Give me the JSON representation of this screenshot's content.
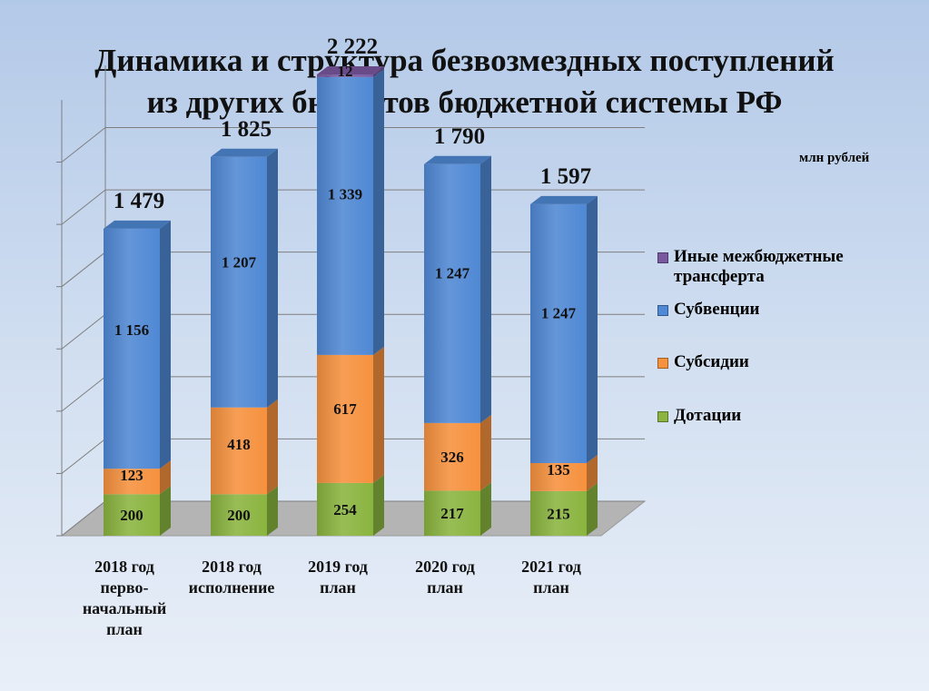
{
  "title_line1": "Динамика и структура безвозмездных поступлений",
  "title_line2": "из других бюджетов бюджетной системы РФ",
  "unit": "млн рублей",
  "colors": {
    "dotacii": "#8ab43f",
    "subsidii": "#f6913e",
    "subvencii": "#4f88d4",
    "inye": "#7a58a0"
  },
  "chart_data": {
    "type": "bar",
    "stacked": true,
    "three_d": true,
    "categories": [
      [
        "2018 год",
        "перво-",
        "начальный",
        "план"
      ],
      [
        "2018 год",
        "исполнение"
      ],
      [
        "2019 год",
        "план"
      ],
      [
        "2020 год",
        "план"
      ],
      [
        "2021 год",
        "план"
      ]
    ],
    "totals": [
      "1 479",
      "1 825",
      "2 222",
      "1 790",
      "1 597"
    ],
    "series": [
      {
        "key": "dotacii",
        "name": "Дотации",
        "values": [
          200,
          200,
          254,
          217,
          215
        ],
        "labels": [
          "200",
          "200",
          "254",
          "217",
          "215"
        ]
      },
      {
        "key": "subsidii",
        "name": "Субсидии",
        "values": [
          123,
          418,
          617,
          326,
          135
        ],
        "labels": [
          "123",
          "418",
          "617",
          "326",
          "135"
        ]
      },
      {
        "key": "subvencii",
        "name": "Субвенции",
        "values": [
          1156,
          1207,
          1339,
          1247,
          1247
        ],
        "labels": [
          "1 156",
          "1 207",
          "1 339",
          "1 247",
          "1 247"
        ]
      },
      {
        "key": "inye",
        "name": "Иные межбюджетные трансферта",
        "values": [
          0,
          0,
          12,
          0,
          0
        ],
        "labels": [
          "",
          "",
          "12",
          "",
          ""
        ]
      }
    ],
    "ylim": [
      0,
      2800
    ],
    "grid": true,
    "legend_position": "right"
  }
}
